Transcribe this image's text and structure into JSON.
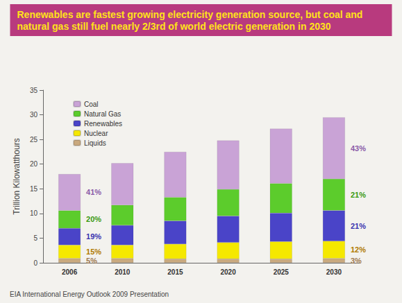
{
  "chart_data": {
    "type": "bar",
    "title": "Renewables are fastest growing electricity generation source, but coal and natural gas still fuel nearly 2/3rd of world electric generation in 2030",
    "y_label": "Trillion Kilowatthours",
    "source": "EIA International Energy Outlook 2009 Presentation",
    "categories": [
      "2006",
      "2010",
      "2015",
      "2020",
      "2025",
      "2030"
    ],
    "stacked": true,
    "grid": false,
    "legend": "top-left",
    "ylim": [
      0,
      35
    ],
    "yticks": [
      0,
      5,
      10,
      15,
      20,
      25,
      30,
      35
    ],
    "series": [
      {
        "name": "Liquids",
        "color": "#c9a97e",
        "values": [
          0.9,
          0.9,
          0.8,
          0.8,
          0.8,
          0.9
        ]
      },
      {
        "name": "Nuclear",
        "color": "#f5e800",
        "values": [
          2.7,
          2.7,
          3.0,
          3.3,
          3.5,
          3.5
        ]
      },
      {
        "name": "Renewables",
        "color": "#4a44c8",
        "values": [
          3.4,
          4.0,
          4.7,
          5.4,
          5.8,
          6.2
        ]
      },
      {
        "name": "Natural Gas",
        "color": "#5ccc2c",
        "values": [
          3.6,
          4.1,
          4.8,
          5.4,
          6.0,
          6.4
        ]
      },
      {
        "name": "Coal",
        "color": "#c9a3d6",
        "values": [
          7.4,
          8.5,
          9.2,
          9.9,
          11.1,
          12.5
        ]
      }
    ],
    "annotations": [
      {
        "text": "41%",
        "category": "2006",
        "series": "Coal",
        "color": "#8a5aa8"
      },
      {
        "text": "20%",
        "category": "2006",
        "series": "Natural Gas",
        "color": "#3a9a12"
      },
      {
        "text": "19%",
        "category": "2006",
        "series": "Renewables",
        "color": "#3a34b0"
      },
      {
        "text": "15%",
        "category": "2006",
        "series": "Nuclear",
        "color": "#b07a00"
      },
      {
        "text": "5%",
        "category": "2006",
        "series": "Liquids",
        "color": "#a07a50"
      },
      {
        "text": "43%",
        "category": "2030",
        "series": "Coal",
        "color": "#8a5aa8"
      },
      {
        "text": "21%",
        "category": "2030",
        "series": "Natural Gas",
        "color": "#3a9a12"
      },
      {
        "text": "21%",
        "category": "2030",
        "series": "Renewables",
        "color": "#3a34b0"
      },
      {
        "text": "12%",
        "category": "2030",
        "series": "Nuclear",
        "color": "#b07a00"
      },
      {
        "text": "3%",
        "category": "2030",
        "series": "Liquids",
        "color": "#a07a50"
      }
    ]
  }
}
